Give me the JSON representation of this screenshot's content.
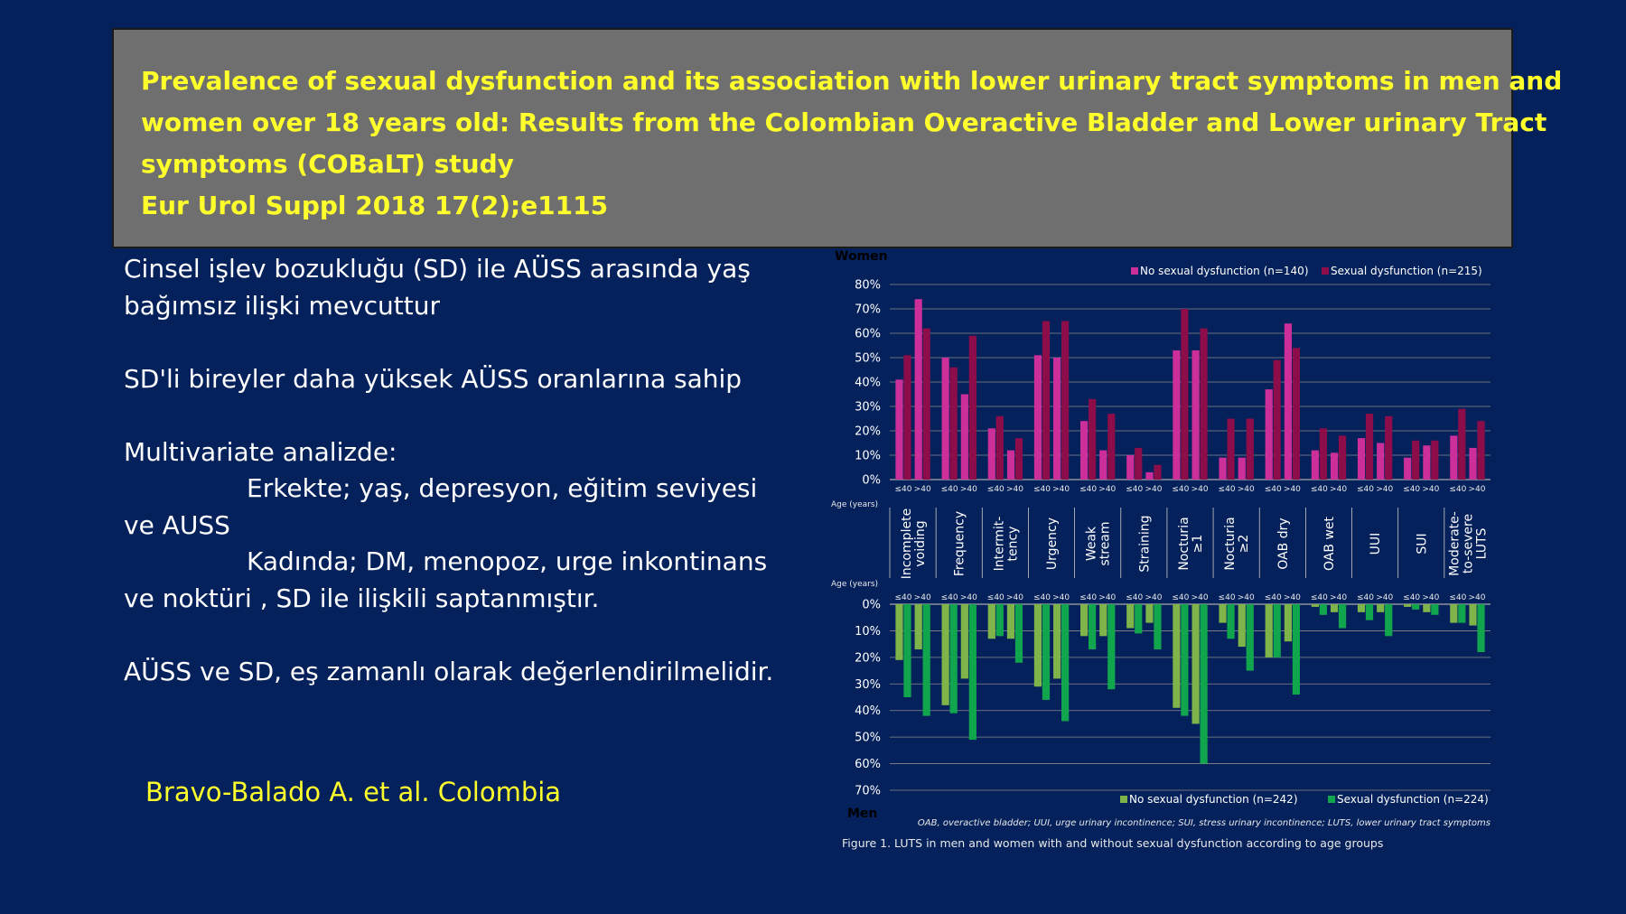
{
  "header": {
    "title_lines": [
      "Prevalence of sexual dysfunction and its association with lower urinary tract symptoms in men and",
      "women over 18 years old: Results from the Colombian Overactive Bladder and Lower urinary Tract",
      "symptoms (COBaLT) study",
      "Eur Urol Suppl 2018 17(2);e1115"
    ]
  },
  "body": {
    "lines": [
      "Cinsel işlev bozukluğu (SD) ile AÜSS arasında yaş",
      "bağımsız ilişki mevcuttur",
      "SD'li bireyler daha yüksek AÜSS oranlarına sahip",
      "Multivariate analizde:",
      "Erkekte;   yaş, depresyon, eğitim seviyesi",
      "ve AUSS",
      "Kadında; DM, menopoz, urge inkontinans",
      "ve noktüri , SD ile ilişkili saptanmıştır.",
      "AÜSS ve SD, eş zamanlı olarak değerlendirilmelidir."
    ],
    "author": "Bravo-Balado A. et al. Colombia"
  },
  "chart_data": {
    "type": "bar",
    "caption": "Figure 1. LUTS in men and women with and without sexual dysfunction according to age groups",
    "footnote": "OAB, overactive bladder; UUI, urge urinary incontinence; SUI, stress urinary incontinence; LUTS, lower urinary tract symptoms",
    "age_axis_label": "Age (years)",
    "age_groups": [
      "≤40",
      ">40"
    ],
    "categories": [
      "Incomplete voiding",
      "Frequency",
      "Intermit-tency",
      "Urgency",
      "Weak stream",
      "Straining",
      "Nocturia ≥1",
      "Nocturia ≥2",
      "OAB dry",
      "OAB wet",
      "UUI",
      "SUI",
      "Moderate-to-severe LUTS"
    ],
    "category_label_lines": [
      [
        "Incomplete",
        "voiding"
      ],
      [
        "Frequency"
      ],
      [
        "Intermit-",
        "tency"
      ],
      [
        "Urgency"
      ],
      [
        "Weak",
        "stream"
      ],
      [
        "Straining"
      ],
      [
        "Nocturia",
        "≥1"
      ],
      [
        "Nocturia",
        "≥2"
      ],
      [
        "OAB dry"
      ],
      [
        "OAB wet"
      ],
      [
        "UUI"
      ],
      [
        "SUI"
      ],
      [
        "Moderate-",
        "to-severe",
        "LUTS"
      ]
    ],
    "women": {
      "label": "Women",
      "ylim": [
        0,
        80
      ],
      "yticks": [
        "80%",
        "70%",
        "60%",
        "50%",
        "40%",
        "30%",
        "20%",
        "10%",
        "0%"
      ],
      "series": [
        {
          "name": "No sexual dysfunction (n=140)",
          "color": "#cc2e9a",
          "values": [
            [
              41,
              74
            ],
            [
              50,
              35
            ],
            [
              21,
              12
            ],
            [
              51,
              50
            ],
            [
              24,
              12
            ],
            [
              10,
              3
            ],
            [
              53,
              53
            ],
            [
              9,
              9
            ],
            [
              37,
              64
            ],
            [
              12,
              11
            ],
            [
              17,
              15
            ],
            [
              9,
              14
            ],
            [
              18,
              13
            ]
          ]
        },
        {
          "name": "Sexual dysfunction (n=215)",
          "color": "#8c0d4a",
          "values": [
            [
              51,
              62
            ],
            [
              46,
              59
            ],
            [
              26,
              17
            ],
            [
              65,
              65
            ],
            [
              33,
              27
            ],
            [
              13,
              6
            ],
            [
              70,
              62
            ],
            [
              25,
              25
            ],
            [
              49,
              54
            ],
            [
              21,
              18
            ],
            [
              27,
              26
            ],
            [
              16,
              16
            ],
            [
              29,
              24
            ]
          ]
        }
      ]
    },
    "men": {
      "label": "Men",
      "ylim": [
        0,
        70
      ],
      "yticks": [
        "0%",
        "10%",
        "20%",
        "30%",
        "40%",
        "50%",
        "60%",
        "70%"
      ],
      "series": [
        {
          "name": "No sexual dysfunction (n=242)",
          "color": "#7fb44a",
          "values": [
            [
              21,
              17
            ],
            [
              38,
              28
            ],
            [
              13,
              13
            ],
            [
              31,
              28
            ],
            [
              12,
              12
            ],
            [
              9,
              7
            ],
            [
              39,
              45
            ],
            [
              7,
              16
            ],
            [
              20,
              14
            ],
            [
              1,
              3
            ],
            [
              3,
              3
            ],
            [
              1,
              3
            ],
            [
              7,
              8
            ]
          ]
        },
        {
          "name": "Sexual dysfunction (n=224)",
          "color": "#11a64e",
          "values": [
            [
              35,
              42
            ],
            [
              41,
              51
            ],
            [
              12,
              22
            ],
            [
              36,
              44
            ],
            [
              17,
              32
            ],
            [
              11,
              17
            ],
            [
              42,
              60
            ],
            [
              13,
              25
            ],
            [
              20,
              34
            ],
            [
              4,
              9
            ],
            [
              6,
              12
            ],
            [
              2,
              4
            ],
            [
              7,
              18
            ]
          ]
        }
      ]
    }
  }
}
